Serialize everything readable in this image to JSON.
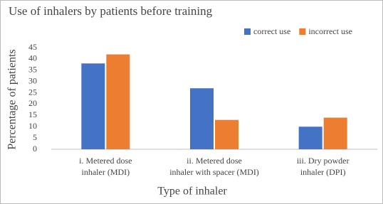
{
  "chart_data": {
    "type": "bar",
    "title": "Use of inhalers by patients before training",
    "x_label": "Type of inhaler",
    "y_label": "Percentage of patients",
    "categories": [
      [
        "i.        Metered dose",
        "inhaler (MDI)"
      ],
      [
        "ii.       Metered dose",
        "inhaler with spacer (MDI)"
      ],
      [
        "iii.        Dry powder",
        "inhaler (DPI)"
      ]
    ],
    "series": [
      {
        "name": "correct use",
        "color": "#4472c4",
        "values": [
          38,
          27,
          10
        ]
      },
      {
        "name": "incorrect use",
        "color": "#ed7d31",
        "values": [
          42,
          13,
          14
        ]
      }
    ],
    "ylim": [
      0,
      45
    ],
    "yticks": [
      0,
      5,
      10,
      15,
      20,
      25,
      30,
      35,
      40,
      45
    ],
    "grid": false,
    "legend": "top-right"
  }
}
